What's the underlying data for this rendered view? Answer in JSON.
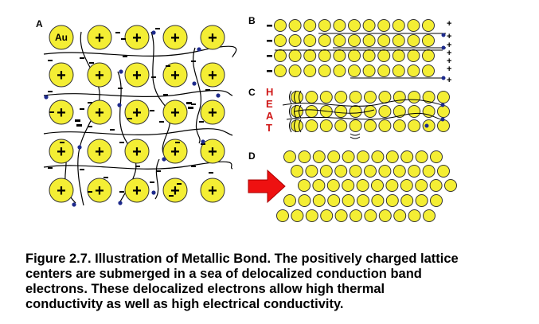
{
  "panels": {
    "a": {
      "label": "A",
      "atom_symbol": "Au",
      "ion_symbol": "+"
    },
    "b": {
      "label": "B",
      "left_charge": "-",
      "right_charge": "+"
    },
    "c": {
      "label": "C",
      "heat_letters": [
        "H",
        "E",
        "A",
        "T"
      ]
    },
    "d": {
      "label": "D"
    }
  },
  "colors": {
    "ion_fill": "#f4ee34",
    "ion_stroke": "#333333",
    "electron": "#1d2a8c",
    "heat_text": "#d01818",
    "arrow": "#ee1111"
  },
  "icons": {
    "force": "red-arrow-icon"
  },
  "caption": {
    "lines": [
      "Figure 2.7. Illustration of Metallic Bond. The positively charged lattice",
      "centers are submerged in a sea of delocalized conduction band",
      "electrons. These delocalized electrons allow high thermal",
      "conductivity as well as high electrical conductivity."
    ]
  }
}
